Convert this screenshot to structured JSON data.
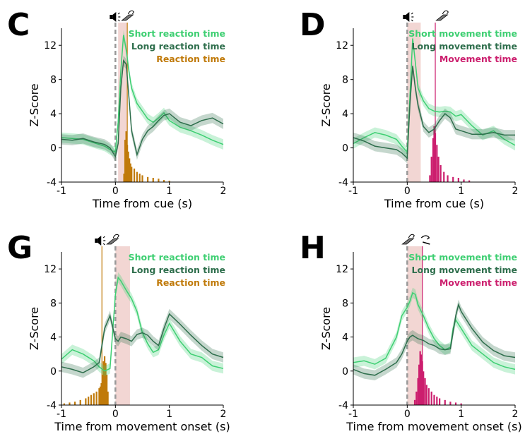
{
  "chart_data": [
    {
      "panel": "C",
      "type": "line",
      "xlabel": "Time from cue (s)",
      "ylabel": "Z-Score",
      "xlim": [
        -1,
        2
      ],
      "ylim": [
        -4,
        14
      ],
      "xticks": [
        "-1",
        "0",
        "1",
        "2"
      ],
      "yticks": [
        "-4",
        "0",
        "4",
        "8",
        "12"
      ],
      "event_markers": [
        "speaker-icon",
        "lever-press-icon"
      ],
      "shaded_window": [
        0.05,
        0.22
      ],
      "vline": 0.22,
      "legend": [
        "Short reaction time",
        "Long reaction time",
        "Reaction time"
      ],
      "series": [
        {
          "name": "Short reaction time",
          "color": "#3ecf72",
          "x": [
            -1,
            -0.8,
            -0.6,
            -0.4,
            -0.2,
            -0.1,
            0,
            0.05,
            0.1,
            0.15,
            0.2,
            0.25,
            0.3,
            0.4,
            0.5,
            0.6,
            0.7,
            0.8,
            0.9,
            1.0,
            1.2,
            1.4,
            1.6,
            1.8,
            2.0
          ],
          "y": [
            1.2,
            1.1,
            1.0,
            0.6,
            0.2,
            -0.2,
            -0.5,
            3,
            9,
            13.2,
            11.5,
            9,
            7,
            5.2,
            4.3,
            3.4,
            3.0,
            3.5,
            4.1,
            3.2,
            2.4,
            2.0,
            1.5,
            0.9,
            0.4
          ]
        },
        {
          "name": "Long reaction time",
          "color": "#2e6e4c",
          "x": [
            -1,
            -0.8,
            -0.6,
            -0.4,
            -0.2,
            -0.1,
            0,
            0.05,
            0.1,
            0.15,
            0.2,
            0.25,
            0.3,
            0.4,
            0.5,
            0.6,
            0.7,
            0.8,
            0.9,
            1.0,
            1.2,
            1.4,
            1.6,
            1.8,
            2.0
          ],
          "y": [
            1.0,
            0.9,
            1.1,
            0.7,
            0.4,
            0.0,
            -1.0,
            0.5,
            7,
            10.2,
            9.8,
            6,
            2.0,
            -0.8,
            1.0,
            2.0,
            2.5,
            3.2,
            3.8,
            4.0,
            3.0,
            2.6,
            3.2,
            3.5,
            2.8
          ]
        }
      ],
      "histogram": {
        "name": "Reaction time",
        "color": "#c07a0a",
        "x": [
          0.16,
          0.18,
          0.2,
          0.22,
          0.24,
          0.26,
          0.28,
          0.3,
          0.35,
          0.4,
          0.45,
          0.5,
          0.6,
          0.7,
          0.8,
          0.9,
          1.0
        ],
        "values": [
          0.5,
          2.5,
          3.0,
          2.2,
          1.8,
          1.4,
          1.1,
          0.9,
          0.8,
          0.6,
          0.5,
          0.4,
          0.3,
          0.25,
          0.2,
          0.12,
          0.08
        ]
      }
    },
    {
      "panel": "D",
      "type": "line",
      "xlabel": "Time from cue (s)",
      "ylabel": "Z-Score",
      "xlim": [
        -1,
        2
      ],
      "ylim": [
        -4,
        14
      ],
      "xticks": [
        "-1",
        "0",
        "1",
        "2"
      ],
      "yticks": [
        "-4",
        "0",
        "4",
        "8",
        "12"
      ],
      "event_markers": [
        "speaker-icon",
        "lever-press-icon"
      ],
      "shaded_window": [
        0.0,
        0.25
      ],
      "vline": 0.52,
      "legend": [
        "Short movement time",
        "Long movement time",
        "Movement time"
      ],
      "series": [
        {
          "name": "Short movement time",
          "color": "#3ecf72",
          "x": [
            -1,
            -0.8,
            -0.6,
            -0.4,
            -0.2,
            -0.1,
            0,
            0.05,
            0.1,
            0.15,
            0.2,
            0.3,
            0.4,
            0.5,
            0.6,
            0.7,
            0.8,
            0.9,
            1.0,
            1.2,
            1.4,
            1.6,
            1.8,
            2.0
          ],
          "y": [
            0.5,
            1.2,
            1.8,
            1.5,
            1.0,
            0.2,
            -0.5,
            6,
            12.8,
            10,
            7,
            5.5,
            4.6,
            4.3,
            4.2,
            4.3,
            4.2,
            3.7,
            3.9,
            2.6,
            1.5,
            2.0,
            1.0,
            0.3
          ]
        },
        {
          "name": "Long movement time",
          "color": "#2e6e4c",
          "x": [
            -1,
            -0.8,
            -0.6,
            -0.4,
            -0.2,
            -0.1,
            0,
            0.05,
            0.1,
            0.15,
            0.2,
            0.3,
            0.4,
            0.5,
            0.6,
            0.7,
            0.8,
            0.9,
            1.0,
            1.2,
            1.4,
            1.6,
            1.8,
            2.0
          ],
          "y": [
            1.2,
            0.8,
            0.2,
            0.0,
            -0.2,
            -0.6,
            -1.2,
            5,
            9.6,
            7,
            5,
            2.5,
            1.8,
            2.2,
            3.2,
            4.0,
            3.5,
            2.2,
            2.0,
            1.6,
            1.6,
            1.8,
            1.5,
            1.5
          ]
        }
      ],
      "histogram": {
        "name": "Movement time",
        "color": "#cc1f6e",
        "x": [
          0.42,
          0.45,
          0.48,
          0.5,
          0.52,
          0.55,
          0.58,
          0.62,
          0.68,
          0.75,
          0.85,
          0.95,
          1.05,
          1.15
        ],
        "values": [
          0.4,
          1.5,
          2.6,
          3.3,
          2.9,
          2.2,
          1.5,
          1.0,
          0.6,
          0.4,
          0.3,
          0.25,
          0.15,
          0.1
        ]
      }
    },
    {
      "panel": "G",
      "type": "line",
      "xlabel": "Time from movement onset (s)",
      "ylabel": "Z-Score",
      "xlim": [
        -1,
        2
      ],
      "ylim": [
        -4,
        14
      ],
      "xticks": [
        "-1",
        "0",
        "1",
        "2"
      ],
      "yticks": [
        "-4",
        "0",
        "4",
        "8",
        "12"
      ],
      "event_markers": [
        "speaker-icon",
        "lever-press-icon"
      ],
      "shaded_window": [
        0.0,
        0.27
      ],
      "vline": -0.25,
      "legend": [
        "Short reaction time",
        "Long reaction time",
        "Reaction time"
      ],
      "series": [
        {
          "name": "Short reaction time",
          "color": "#3ecf72",
          "x": [
            -1,
            -0.8,
            -0.6,
            -0.4,
            -0.3,
            -0.2,
            -0.1,
            0,
            0.05,
            0.1,
            0.2,
            0.3,
            0.4,
            0.5,
            0.6,
            0.7,
            0.8,
            0.9,
            1.0,
            1.2,
            1.4,
            1.6,
            1.8,
            2.0
          ],
          "y": [
            1.4,
            2.5,
            2.0,
            1.2,
            0.5,
            0.0,
            0.3,
            9,
            11,
            10.6,
            9.5,
            8.5,
            7,
            4.5,
            3.2,
            2.2,
            2.5,
            4.2,
            5.6,
            3.5,
            2.0,
            1.6,
            0.6,
            0.3
          ]
        },
        {
          "name": "Long reaction time",
          "color": "#2e6e4c",
          "x": [
            -1,
            -0.8,
            -0.6,
            -0.4,
            -0.3,
            -0.2,
            -0.1,
            0,
            0.05,
            0.1,
            0.2,
            0.3,
            0.4,
            0.5,
            0.6,
            0.7,
            0.8,
            0.9,
            1.0,
            1.2,
            1.4,
            1.6,
            1.8,
            2.0
          ],
          "y": [
            0.5,
            0.2,
            -0.2,
            0.5,
            1.0,
            5,
            6.5,
            3.8,
            3.5,
            4.0,
            3.8,
            3.5,
            4.3,
            4.5,
            4.2,
            3.5,
            3.0,
            5,
            6.7,
            5.5,
            4.2,
            3.0,
            2.0,
            1.6
          ]
        }
      ],
      "histogram": {
        "name": "Reaction time",
        "color": "#c07a0a",
        "x": [
          -0.95,
          -0.85,
          -0.75,
          -0.65,
          -0.55,
          -0.5,
          -0.45,
          -0.4,
          -0.35,
          -0.3,
          -0.28,
          -0.26,
          -0.24,
          -0.22,
          -0.2,
          -0.18,
          -0.16,
          -0.14
        ],
        "values": [
          0.1,
          0.15,
          0.2,
          0.3,
          0.4,
          0.5,
          0.6,
          0.7,
          0.8,
          1.0,
          1.1,
          1.3,
          1.8,
          2.6,
          2.9,
          2.5,
          1.8,
          0.8
        ]
      }
    },
    {
      "panel": "H",
      "type": "line",
      "xlabel": "Time from movement onset (s)",
      "ylabel": "Z-Score",
      "xlim": [
        -1,
        2
      ],
      "ylim": [
        -4,
        14
      ],
      "xticks": [
        "-1",
        "0",
        "1",
        "2"
      ],
      "yticks": [
        "-4",
        "0",
        "4",
        "8",
        "12"
      ],
      "event_markers": [
        "lever-press-icon",
        "lever-release-icon"
      ],
      "shaded_window": [
        0.0,
        0.28
      ],
      "vline": 0.28,
      "legend": [
        "Short movement time",
        "Long movement time",
        "Movement time"
      ],
      "series": [
        {
          "name": "Short movement time",
          "color": "#3ecf72",
          "x": [
            -1,
            -0.8,
            -0.6,
            -0.4,
            -0.2,
            -0.1,
            0,
            0.05,
            0.1,
            0.15,
            0.2,
            0.3,
            0.4,
            0.5,
            0.6,
            0.7,
            0.8,
            0.85,
            0.9,
            1.0,
            1.2,
            1.4,
            1.6,
            1.8,
            2.0
          ],
          "y": [
            1.0,
            1.2,
            0.8,
            1.5,
            4.0,
            6.5,
            7.5,
            8.2,
            9.2,
            9.0,
            7.8,
            6.5,
            5.0,
            3.8,
            3.0,
            2.5,
            2.8,
            5.0,
            6.0,
            5.0,
            3.0,
            2.0,
            1.0,
            0.5,
            0.2
          ]
        },
        {
          "name": "Long movement time",
          "color": "#2e6e4c",
          "x": [
            -1,
            -0.8,
            -0.6,
            -0.4,
            -0.2,
            -0.1,
            0,
            0.05,
            0.1,
            0.15,
            0.2,
            0.3,
            0.4,
            0.5,
            0.6,
            0.7,
            0.8,
            0.9,
            0.95,
            1.0,
            1.2,
            1.4,
            1.6,
            1.8,
            2.0
          ],
          "y": [
            0.2,
            -0.3,
            -0.5,
            0.2,
            1.0,
            2.0,
            3.5,
            4.0,
            4.2,
            4.0,
            3.8,
            3.6,
            3.2,
            3.0,
            2.6,
            2.5,
            2.6,
            6.5,
            7.8,
            7.0,
            5.0,
            3.4,
            2.4,
            1.8,
            1.6
          ]
        }
      ],
      "histogram": {
        "name": "Movement time",
        "color": "#cc1f6e",
        "x": [
          0.14,
          0.17,
          0.2,
          0.22,
          0.24,
          0.26,
          0.28,
          0.3,
          0.33,
          0.36,
          0.4,
          0.45,
          0.5,
          0.55,
          0.6,
          0.7,
          0.8,
          0.9,
          1.0
        ],
        "values": [
          0.3,
          0.8,
          1.6,
          2.4,
          3.2,
          3.0,
          2.6,
          2.0,
          1.6,
          1.2,
          1.0,
          0.8,
          0.6,
          0.5,
          0.4,
          0.3,
          0.2,
          0.15,
          0.1
        ]
      }
    }
  ]
}
